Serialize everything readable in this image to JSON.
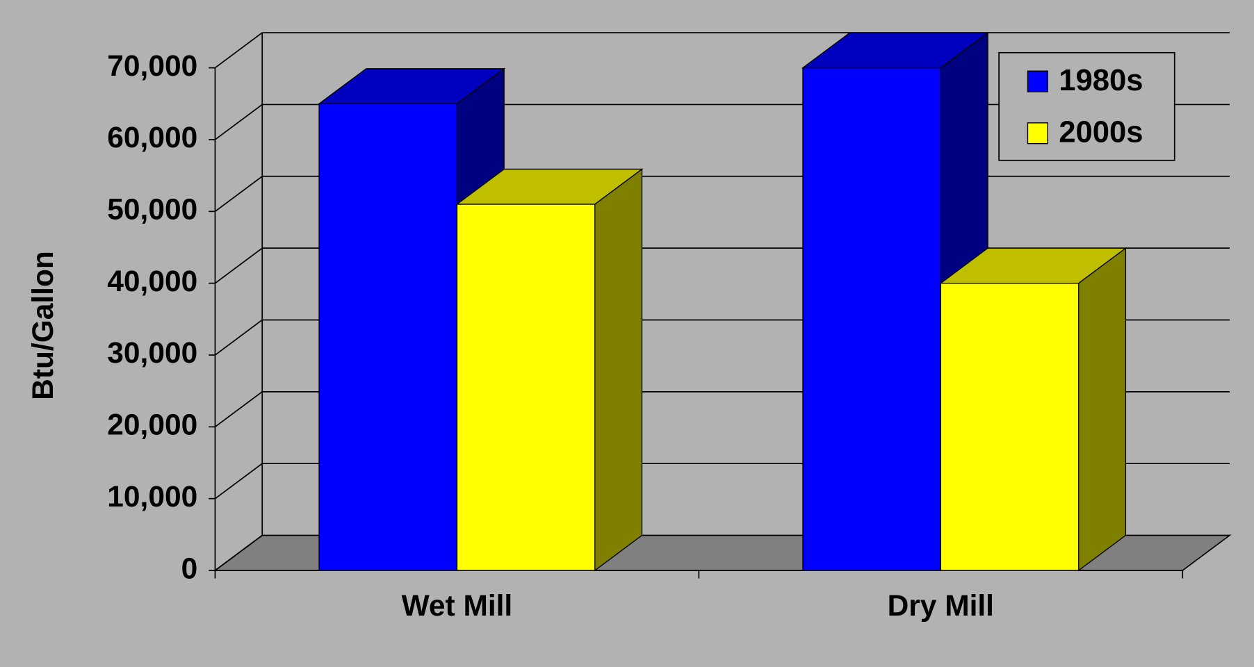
{
  "chart_data": {
    "type": "bar3d",
    "y_label": "Btu/Gallon",
    "categories": [
      "Wet Mill",
      "Dry Mill"
    ],
    "series": [
      {
        "name": "1980s",
        "color": "#0000ff",
        "values": [
          65000,
          70000
        ]
      },
      {
        "name": "2000s",
        "color": "#ffff00",
        "values": [
          51000,
          40000
        ]
      }
    ],
    "ylim": [
      0,
      70000
    ],
    "yticks": [
      0,
      {
        "value": 10000,
        "label": "10,000"
      },
      {
        "value": 20000,
        "label": "20,000"
      },
      {
        "value": 30000,
        "label": "30,000"
      },
      {
        "value": 40000,
        "label": "40,000"
      },
      {
        "value": 50000,
        "label": "50,000"
      },
      {
        "value": 60000,
        "label": "60,000"
      },
      {
        "value": 70000,
        "label": "70,000"
      }
    ],
    "grid": true,
    "legend": "top-right"
  }
}
